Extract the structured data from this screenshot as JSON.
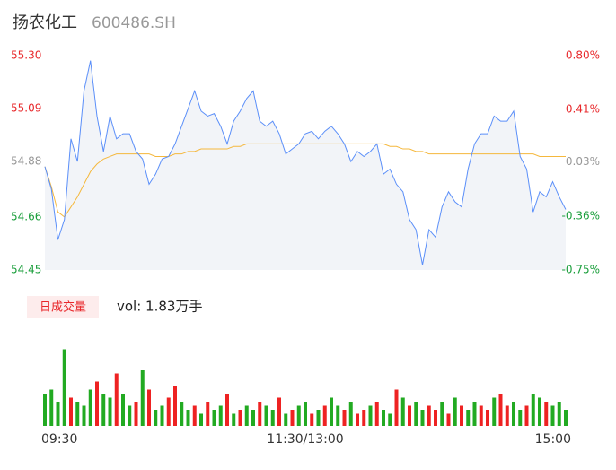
{
  "header": {
    "title": "扬农化工",
    "code": "600486.SH"
  },
  "chart_data": [
    {
      "type": "line",
      "ylim": [
        54.45,
        55.3
      ],
      "yticks": [
        {
          "value": 55.3,
          "label": "55.30"
        },
        55.09,
        54.88,
        54.66,
        54.45
      ],
      "y2lim": [
        -0.75,
        0.8
      ],
      "y2ticks": [
        {
          "value": 0.8,
          "label": "0.80%"
        },
        {
          "value": 0.41,
          "label": "0.41%"
        },
        {
          "value": 0.03,
          "label": "0.03%"
        },
        {
          "value": -0.36,
          "label": "-0.36%"
        },
        {
          "value": -0.75,
          "label": "-0.75%"
        }
      ],
      "tick_colors": [
        "#e8282b",
        "#e8282b",
        "#999999",
        "#1a9e3b",
        "#1a9e3b"
      ],
      "area_color": "#f2f4f8",
      "series": [
        {
          "color": "#5b8ff9",
          "values": [
            54.86,
            54.77,
            54.57,
            54.65,
            54.97,
            54.88,
            55.16,
            55.28,
            55.06,
            54.92,
            55.06,
            54.97,
            54.99,
            54.99,
            54.92,
            54.89,
            54.79,
            54.83,
            54.89,
            54.9,
            54.95,
            55.02,
            55.09,
            55.16,
            55.08,
            55.06,
            55.07,
            55.02,
            54.95,
            55.04,
            55.08,
            55.13,
            55.16,
            55.04,
            55.02,
            55.04,
            54.99,
            54.91,
            54.93,
            54.95,
            54.99,
            55.0,
            54.97,
            55.0,
            55.02,
            54.99,
            54.95,
            54.88,
            54.92,
            54.9,
            54.92,
            54.95,
            54.83,
            54.85,
            54.79,
            54.76,
            54.65,
            54.61,
            54.47,
            54.61,
            54.58,
            54.7,
            54.76,
            54.72,
            54.7,
            54.85,
            54.95,
            54.99,
            54.99,
            55.06,
            55.04,
            55.04,
            55.08,
            54.9,
            54.85,
            54.68,
            54.76,
            54.74,
            54.8,
            54.74,
            54.69
          ]
        },
        {
          "color": "#f5b83d",
          "values": [
            54.86,
            54.78,
            54.68,
            54.66,
            54.7,
            54.74,
            54.79,
            54.84,
            54.87,
            54.89,
            54.9,
            54.91,
            54.91,
            54.91,
            54.91,
            54.91,
            54.91,
            54.9,
            54.9,
            54.9,
            54.91,
            54.91,
            54.92,
            54.92,
            54.93,
            54.93,
            54.93,
            54.93,
            54.93,
            54.94,
            54.94,
            54.95,
            54.95,
            54.95,
            54.95,
            54.95,
            54.95,
            54.95,
            54.95,
            54.95,
            54.95,
            54.95,
            54.95,
            54.95,
            54.95,
            54.95,
            54.95,
            54.95,
            54.95,
            54.95,
            54.95,
            54.95,
            54.95,
            54.94,
            54.94,
            54.93,
            54.93,
            54.92,
            54.92,
            54.91,
            54.91,
            54.91,
            54.91,
            54.91,
            54.91,
            54.91,
            54.91,
            54.91,
            54.91,
            54.91,
            54.91,
            54.91,
            54.91,
            54.91,
            54.91,
            54.91,
            54.9,
            54.9,
            54.9,
            54.9,
            54.9
          ]
        }
      ]
    },
    {
      "type": "bar",
      "label": "日成交量",
      "summary": "vol: 1.83万手",
      "ylim": [
        0,
        100
      ],
      "categories": [
        "09:30",
        null,
        null,
        null,
        null,
        null,
        null,
        null,
        null,
        null,
        null,
        null,
        null,
        null,
        null,
        null,
        null,
        null,
        null,
        null,
        null,
        null,
        null,
        null,
        null,
        null,
        null,
        null,
        null,
        null,
        null,
        null,
        null,
        null,
        null,
        null,
        null,
        null,
        null,
        null,
        "11:30/13:00",
        null,
        null,
        null,
        null,
        null,
        null,
        null,
        null,
        null,
        null,
        null,
        null,
        null,
        null,
        null,
        null,
        null,
        null,
        null,
        null,
        null,
        null,
        null,
        null,
        null,
        null,
        null,
        null,
        null,
        null,
        null,
        null,
        null,
        null,
        null,
        null,
        null,
        null,
        null,
        "15:00"
      ],
      "values": [
        40,
        45,
        30,
        95,
        35,
        30,
        25,
        45,
        55,
        40,
        35,
        65,
        40,
        25,
        30,
        70,
        45,
        20,
        25,
        35,
        50,
        30,
        20,
        25,
        15,
        30,
        20,
        25,
        40,
        15,
        20,
        25,
        20,
        30,
        25,
        20,
        35,
        15,
        20,
        25,
        30,
        15,
        20,
        25,
        35,
        25,
        20,
        30,
        15,
        20,
        25,
        30,
        20,
        15,
        45,
        35,
        25,
        30,
        20,
        25,
        20,
        30,
        15,
        35,
        25,
        20,
        30,
        25,
        20,
        35,
        40,
        25,
        30,
        20,
        25,
        40,
        35,
        30,
        25,
        30,
        20
      ],
      "colors": [
        "#2a2",
        "#2a2",
        "#2a2",
        "#2a2",
        "#e22",
        "#2a2",
        "#2a2",
        "#2a2",
        "#e22",
        "#2a2",
        "#2a2",
        "#e22",
        "#2a2",
        "#2a2",
        "#e22",
        "#2a2",
        "#e22",
        "#2a2",
        "#2a2",
        "#e22",
        "#e22",
        "#2a2",
        "#2a2",
        "#e22",
        "#2a2",
        "#e22",
        "#2a2",
        "#2a2",
        "#e22",
        "#2a2",
        "#e22",
        "#2a2",
        "#2a2",
        "#e22",
        "#2a2",
        "#2a2",
        "#e22",
        "#2a2",
        "#e22",
        "#2a2",
        "#2a2",
        "#e22",
        "#2a2",
        "#e22",
        "#2a2",
        "#2a2",
        "#e22",
        "#2a2",
        "#e22",
        "#e22",
        "#2a2",
        "#e22",
        "#2a2",
        "#2a2",
        "#e22",
        "#2a2",
        "#e22",
        "#2a2",
        "#2a2",
        "#e22",
        "#e22",
        "#2a2",
        "#e22",
        "#2a2",
        "#e22",
        "#2a2",
        "#2a2",
        "#e22",
        "#e22",
        "#2a2",
        "#e22",
        "#e22",
        "#2a2",
        "#2a2",
        "#e22",
        "#2a2",
        "#2a2",
        "#e22",
        "#2a2",
        "#2a2",
        "#2a2"
      ]
    }
  ]
}
